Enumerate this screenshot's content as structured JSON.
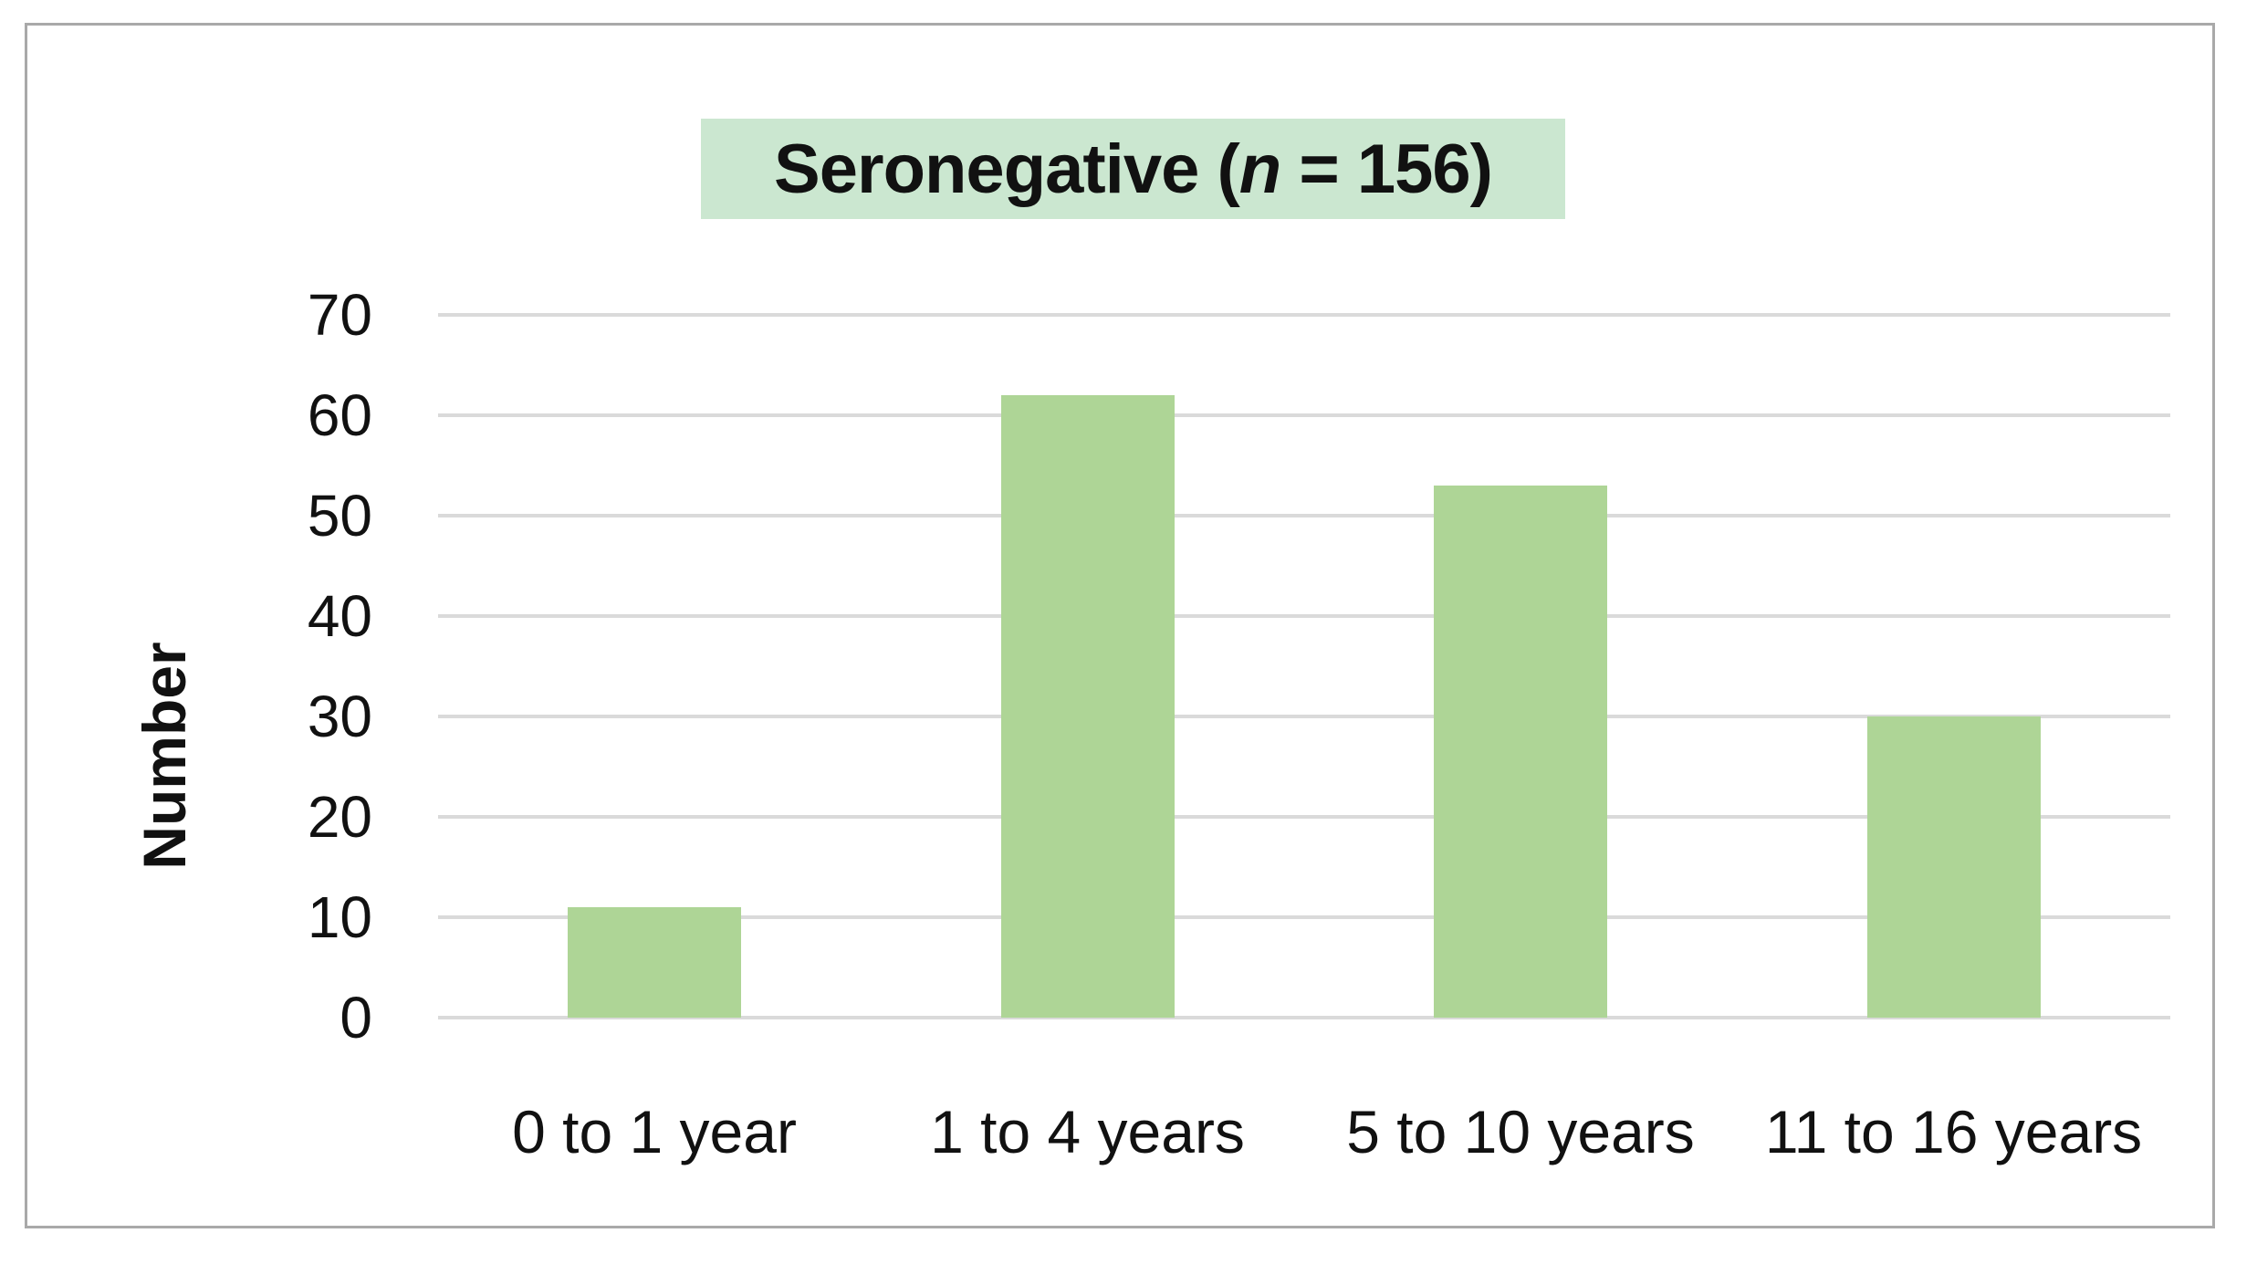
{
  "chart_data": {
    "type": "bar",
    "title": {
      "prefix": "Seronegative (",
      "n_symbol": "n",
      "suffix": " = 156)",
      "full_text": "Seronegative (n = 156)"
    },
    "categories": [
      "0 to 1 year",
      "1 to 4 years",
      "5 to 10 years",
      "11 to 16 years"
    ],
    "values": [
      11,
      62,
      53,
      30
    ],
    "xlabel": "",
    "ylabel": "Number",
    "yticks": [
      0,
      10,
      20,
      30,
      40,
      50,
      60,
      70
    ],
    "ylim": [
      0,
      70
    ],
    "grid": "horizontal",
    "legend_position": "none",
    "colors": {
      "bar_fill": "#aed596",
      "title_background": "#cbe7d0",
      "gridline": "#dadada",
      "frame_border": "#a9a9a9",
      "text": "#111111",
      "background": "#ffffff"
    }
  }
}
